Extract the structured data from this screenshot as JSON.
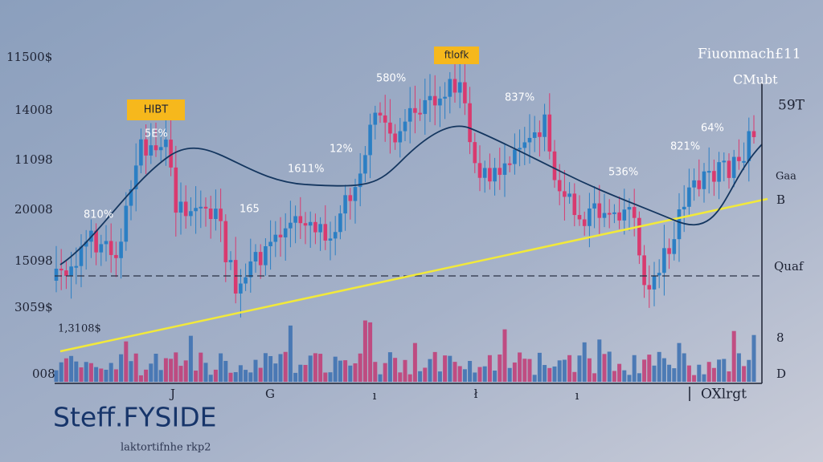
{
  "header": {
    "title": "Fiuonmach£11",
    "subtitle": "CMubt"
  },
  "left_labels": [
    "11500$",
    "14008",
    "11098",
    "20008",
    "15098",
    "3059$",
    "1,3108$",
    "008"
  ],
  "right_labels": [
    "59T",
    "Gaa",
    "B",
    "Quaf",
    "8",
    "D"
  ],
  "badges": [
    "HIBT",
    "ftlofk"
  ],
  "annotations": [
    "5E%",
    "810%",
    "165",
    "1611%",
    "12%",
    "580%",
    "837%",
    "536%",
    "64%",
    "821%"
  ],
  "bottom_labels": [
    "J",
    "G",
    "ı",
    "ł",
    "ı",
    "OXlrgt"
  ],
  "footer": {
    "brand": "Steff.FYSIDE",
    "caption": "laktortifnhe  rkp2"
  }
}
